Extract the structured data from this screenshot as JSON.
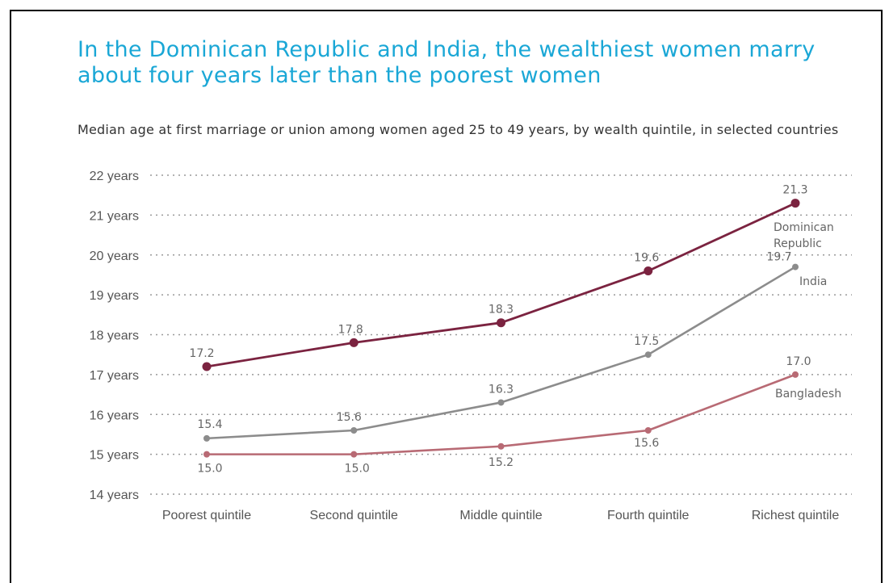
{
  "chart_data": {
    "type": "line",
    "title": "In the Dominican Republic and India, the wealthiest women marry about four years later than the poorest women",
    "subtitle": "Median age at first marriage or union among women aged 25 to 49 years, by wealth quintile, in selected countries",
    "categories": [
      "Poorest quintile",
      "Second quintile",
      "Middle quintile",
      "Fourth quintile",
      "Richest quintile"
    ],
    "y_ticks": [
      14,
      15,
      16,
      17,
      18,
      19,
      20,
      21,
      22
    ],
    "y_tick_labels": [
      "14 years",
      "15 years",
      "16 years",
      "17 years",
      "18 years",
      "19 years",
      "20 years",
      "21 years",
      "22 years"
    ],
    "ylim": [
      14,
      22
    ],
    "grid": "dotted horizontal",
    "series": [
      {
        "name": "Dominican Republic",
        "label_lines": [
          "Dominican",
          "Republic"
        ],
        "color": "#7b2340",
        "values": [
          17.2,
          17.8,
          18.3,
          19.6,
          21.3
        ],
        "labels": [
          "17.2",
          "17.8",
          "18.3",
          "19.6",
          "21.3"
        ]
      },
      {
        "name": "India",
        "label_lines": [
          "India"
        ],
        "color": "#8c8c8c",
        "values": [
          15.4,
          15.6,
          16.3,
          17.5,
          19.7
        ],
        "labels": [
          "15.4",
          "15.6",
          "16.3",
          "17.5",
          "19.7"
        ]
      },
      {
        "name": "Bangladesh",
        "label_lines": [
          "Bangladesh"
        ],
        "color": "#b86a74",
        "values": [
          15.0,
          15.0,
          15.2,
          15.6,
          17.0
        ],
        "labels": [
          "15.0",
          "15.0",
          "15.2",
          "15.6",
          "17.0"
        ]
      }
    ]
  }
}
